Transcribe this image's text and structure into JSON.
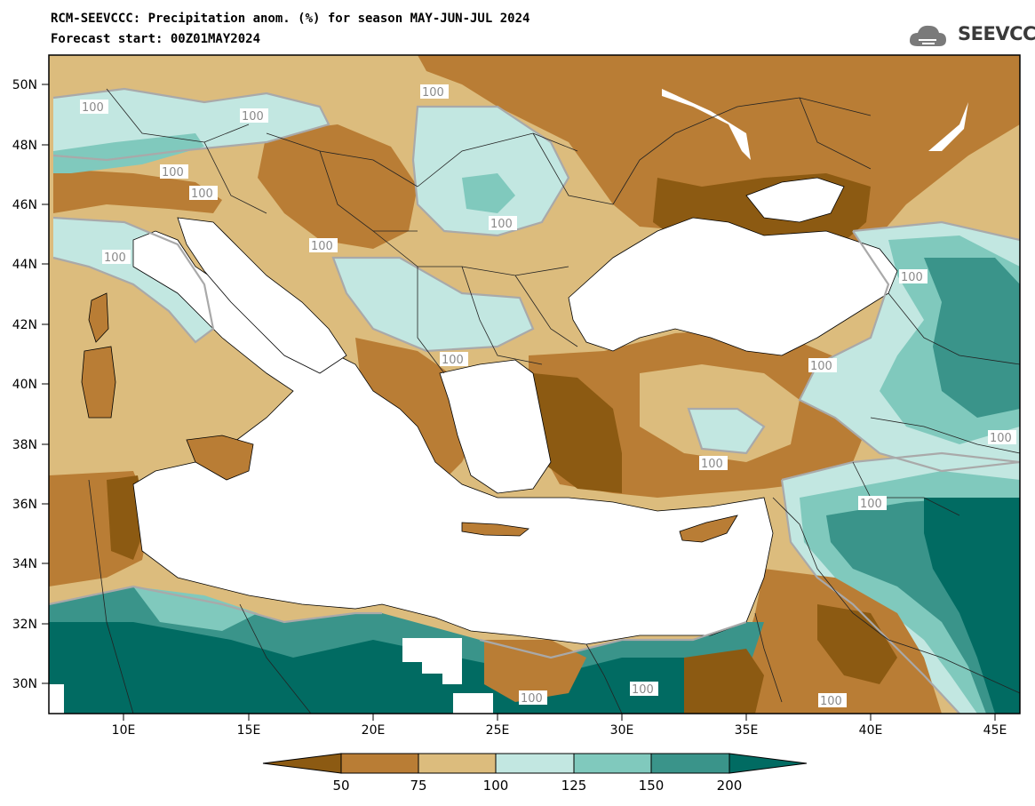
{
  "header": {
    "title": "RCM-SEEVCCC: Precipitation anom. (%) for season MAY-JUN-JUL 2024",
    "subtitle": "Forecast start: 00Z01MAY2024",
    "logo_text": "SEEVCCC"
  },
  "map": {
    "lon_range": [
      7,
      46
    ],
    "lat_range": [
      29,
      51
    ],
    "lat_ticks": [
      "30N",
      "32N",
      "34N",
      "36N",
      "38N",
      "40N",
      "42N",
      "44N",
      "46N",
      "48N",
      "50N"
    ],
    "lon_ticks": [
      "10E",
      "15E",
      "20E",
      "25E",
      "30E",
      "35E",
      "40E",
      "45E"
    ],
    "contour_label": "100"
  },
  "legend": {
    "labels": [
      "50",
      "75",
      "100",
      "125",
      "150",
      "200"
    ],
    "colors": [
      "#8c5a12",
      "#b97d35",
      "#dcbc7d",
      "#c2e7e1",
      "#80c9bd",
      "#3a948a",
      "#016b62"
    ]
  },
  "colors": {
    "dry_strong": "#8c5a12",
    "dry": "#b97d35",
    "dry_light": "#dcbc7d",
    "wet_light": "#c2e7e1",
    "wet": "#80c9bd",
    "wet_med": "#3a948a",
    "wet_strong": "#016b62",
    "sea": "#ffffff",
    "contour": "#a9a9a9"
  }
}
